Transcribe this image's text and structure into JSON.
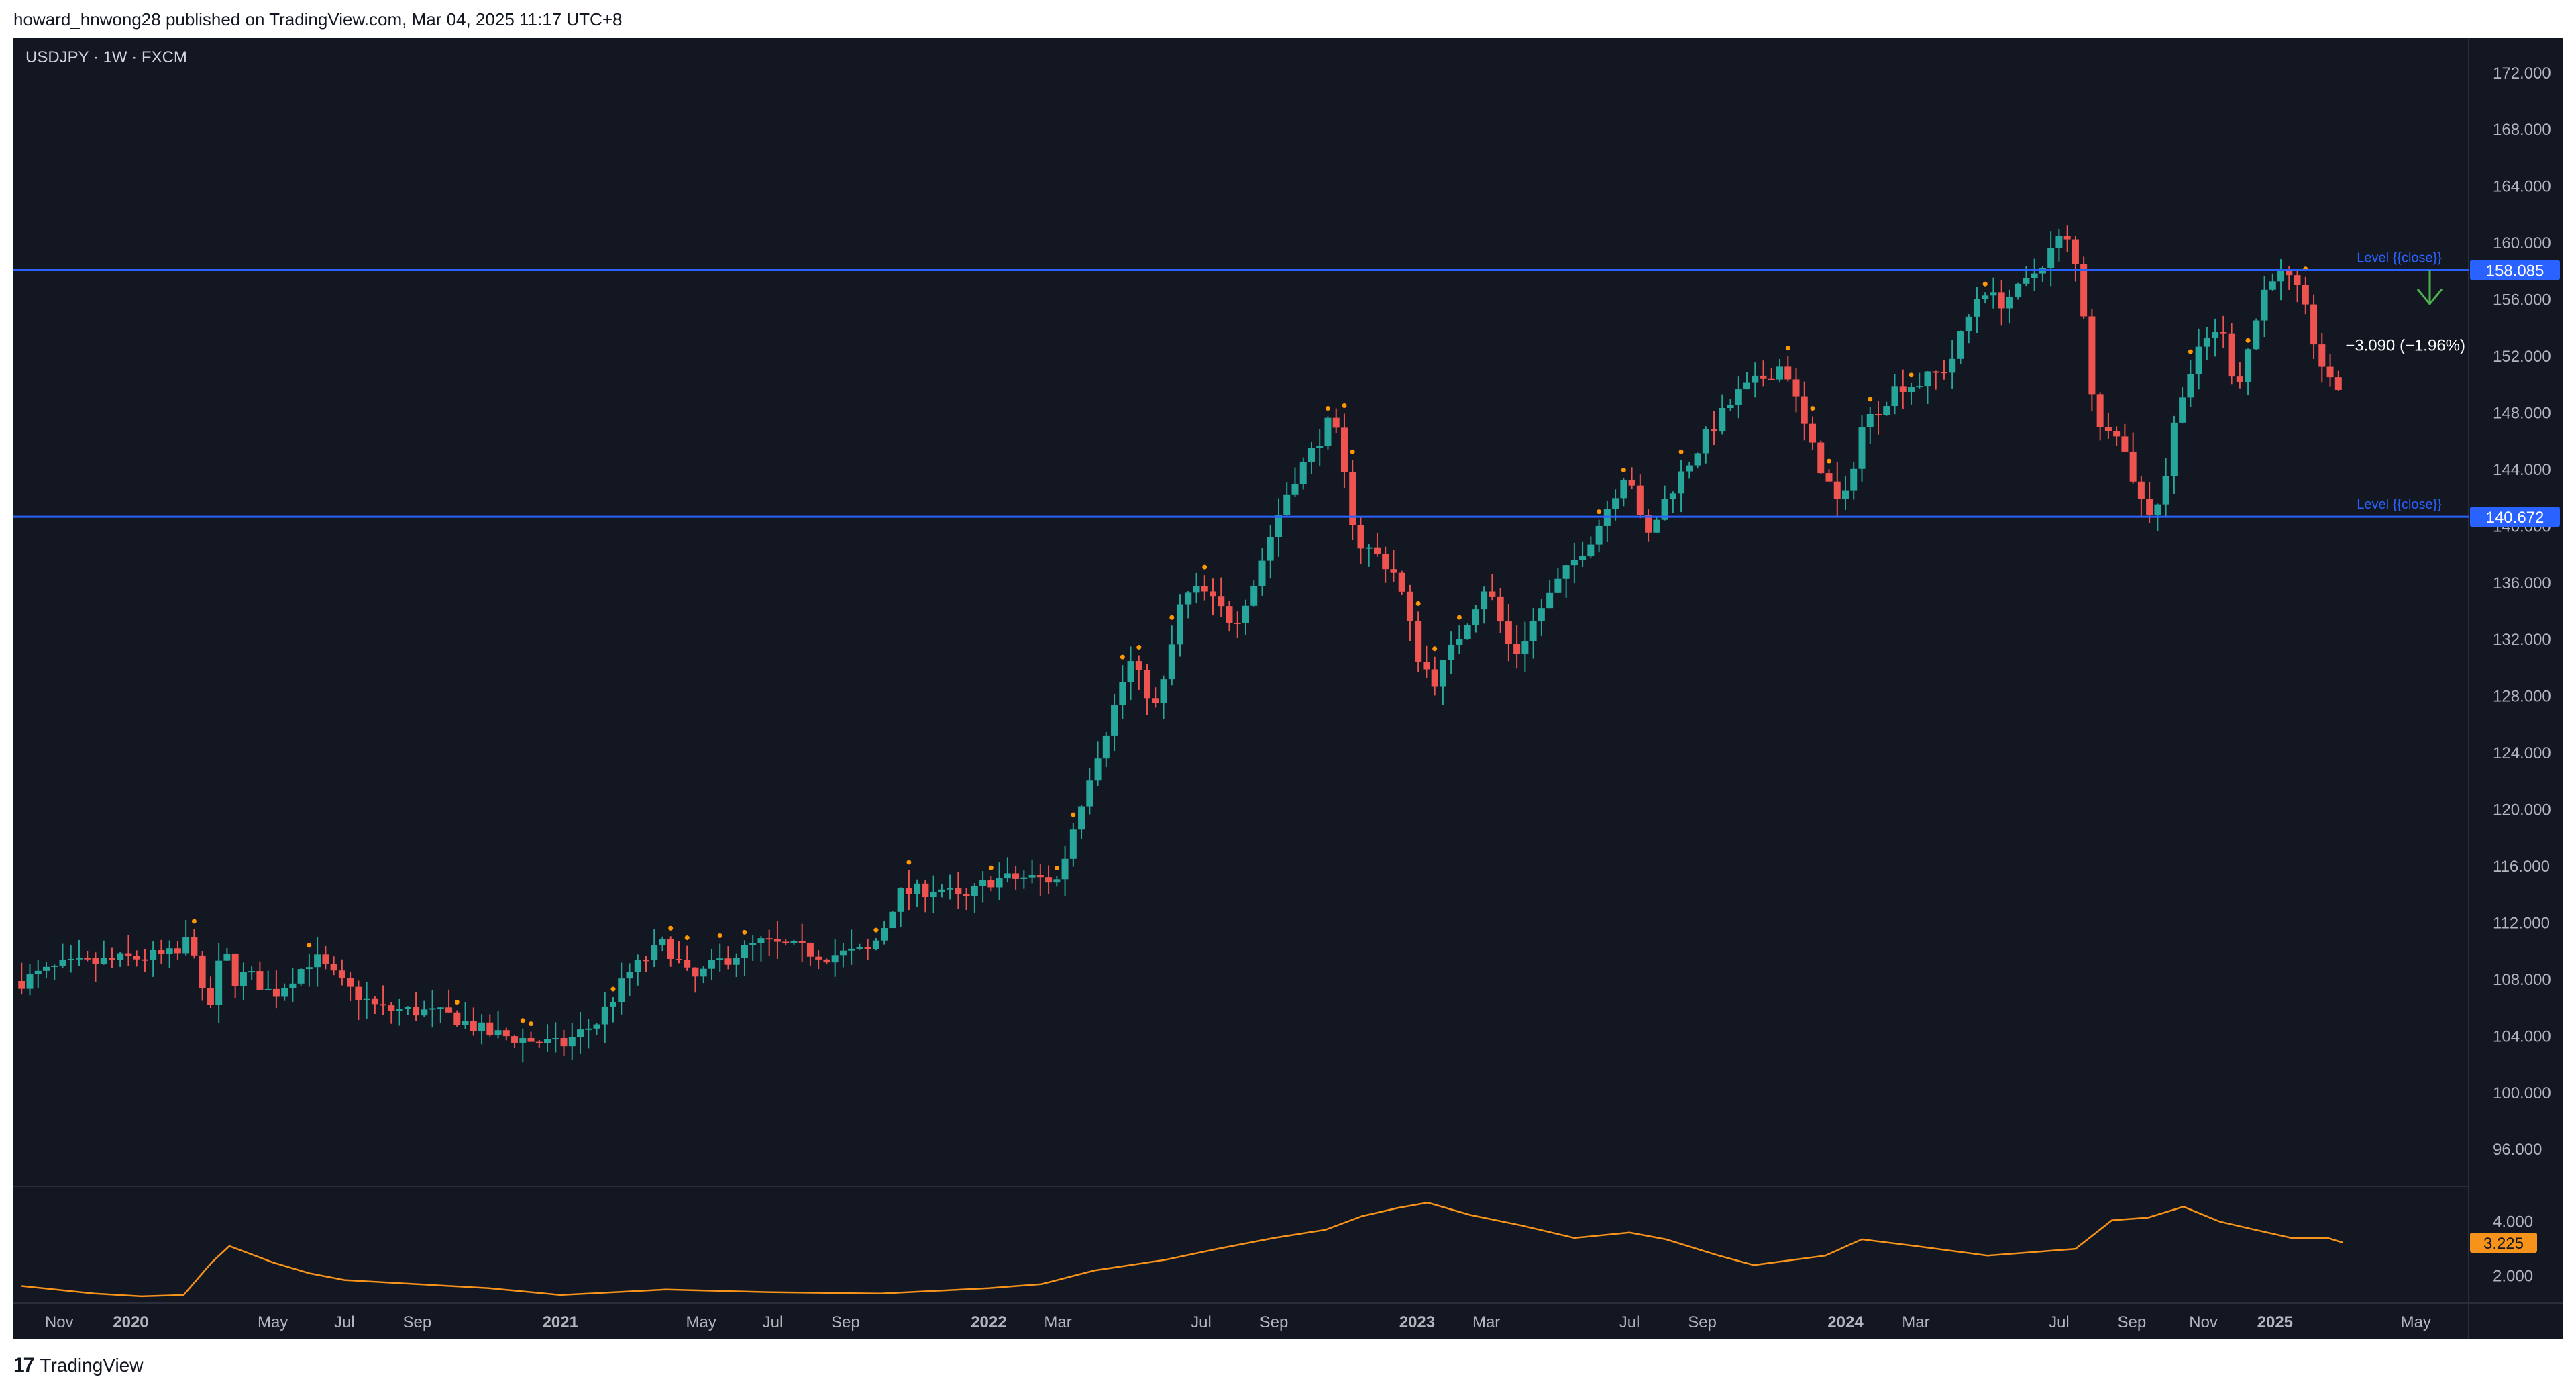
{
  "header": {
    "published_text": "howard_hnwong28 published on TradingView.com, Mar 04, 2025 11:17 UTC+8"
  },
  "symbol": {
    "label": "USDJPY · 1W · FXCM"
  },
  "footer": {
    "brand": "TradingView",
    "logo_icon": "tradingview-logo-icon"
  },
  "colors": {
    "background": "#131722",
    "up": "#26a69a",
    "down": "#ef5350",
    "level": "#2962ff",
    "indicator": "#f7931a",
    "dot": "#ff9800",
    "text": "#b2b5be"
  },
  "chart_data": {
    "type": "candlestick",
    "symbol": "USDJPY",
    "interval": "1W",
    "source": "FXCM",
    "ylim": [
      93.5,
      174.5
    ],
    "y_ticks": [
      "172.000",
      "168.000",
      "164.000",
      "160.000",
      "156.000",
      "152.000",
      "148.000",
      "144.000",
      "140.000",
      "136.000",
      "132.000",
      "128.000",
      "124.000",
      "120.000",
      "116.000",
      "112.000",
      "108.000",
      "104.000",
      "100.000",
      "96.000"
    ],
    "x_ticks": [
      {
        "label": "Nov",
        "t": "2019-11-01",
        "bold": false
      },
      {
        "label": "2020",
        "t": "2020-01-01",
        "bold": true
      },
      {
        "label": "May",
        "t": "2020-05-01",
        "bold": false
      },
      {
        "label": "Jul",
        "t": "2020-07-01",
        "bold": false
      },
      {
        "label": "Sep",
        "t": "2020-09-01",
        "bold": false
      },
      {
        "label": "2021",
        "t": "2021-01-01",
        "bold": true
      },
      {
        "label": "May",
        "t": "2021-05-01",
        "bold": false
      },
      {
        "label": "Jul",
        "t": "2021-07-01",
        "bold": false
      },
      {
        "label": "Sep",
        "t": "2021-09-01",
        "bold": false
      },
      {
        "label": "2022",
        "t": "2022-01-01",
        "bold": true
      },
      {
        "label": "Mar",
        "t": "2022-03-01",
        "bold": false
      },
      {
        "label": "Jul",
        "t": "2022-07-01",
        "bold": false
      },
      {
        "label": "Sep",
        "t": "2022-09-01",
        "bold": false
      },
      {
        "label": "2023",
        "t": "2023-01-01",
        "bold": true
      },
      {
        "label": "Mar",
        "t": "2023-03-01",
        "bold": false
      },
      {
        "label": "Jul",
        "t": "2023-07-01",
        "bold": false
      },
      {
        "label": "Sep",
        "t": "2023-09-01",
        "bold": false
      },
      {
        "label": "2024",
        "t": "2024-01-01",
        "bold": true
      },
      {
        "label": "Mar",
        "t": "2024-03-01",
        "bold": false
      },
      {
        "label": "Jul",
        "t": "2024-07-01",
        "bold": false
      },
      {
        "label": "Sep",
        "t": "2024-09-01",
        "bold": false
      },
      {
        "label": "Nov",
        "t": "2024-11-01",
        "bold": false
      },
      {
        "label": "2025",
        "t": "2025-01-01",
        "bold": true
      },
      {
        "label": "May",
        "t": "2025-05-01",
        "bold": false
      }
    ],
    "close_path": [
      [
        "2019-09-30",
        107.9
      ],
      [
        "2019-11-01",
        108.9
      ],
      [
        "2019-12-01",
        109.2
      ],
      [
        "2020-01-01",
        109.5
      ],
      [
        "2020-02-14",
        109.8
      ],
      [
        "2020-02-21",
        111.8
      ],
      [
        "2020-02-28",
        108.0
      ],
      [
        "2020-03-06",
        105.3
      ],
      [
        "2020-03-13",
        107.5
      ],
      [
        "2020-03-20",
        110.8
      ],
      [
        "2020-03-27",
        107.9
      ],
      [
        "2020-04-10",
        108.4
      ],
      [
        "2020-05-01",
        106.9
      ],
      [
        "2020-06-05",
        109.6
      ],
      [
        "2020-07-01",
        107.5
      ],
      [
        "2020-07-31",
        105.9
      ],
      [
        "2020-09-01",
        105.8
      ],
      [
        "2020-10-01",
        105.4
      ],
      [
        "2020-11-01",
        104.2
      ],
      [
        "2020-12-01",
        103.8
      ],
      [
        "2021-01-01",
        103.3
      ],
      [
        "2021-02-01",
        105.0
      ],
      [
        "2021-03-01",
        108.5
      ],
      [
        "2021-03-31",
        110.6
      ],
      [
        "2021-04-23",
        107.9
      ],
      [
        "2021-05-15",
        109.2
      ],
      [
        "2021-06-20",
        110.6
      ],
      [
        "2021-07-15",
        110.3
      ],
      [
        "2021-08-15",
        109.7
      ],
      [
        "2021-09-20",
        110.0
      ],
      [
        "2021-10-01",
        111.2
      ],
      [
        "2021-10-15",
        114.0
      ],
      [
        "2021-11-20",
        114.5
      ],
      [
        "2021-12-10",
        113.5
      ],
      [
        "2022-01-01",
        115.0
      ],
      [
        "2022-02-01",
        115.2
      ],
      [
        "2022-03-01",
        115.0
      ],
      [
        "2022-03-15",
        119.0
      ],
      [
        "2022-03-28",
        122.5
      ],
      [
        "2022-04-15",
        126.5
      ],
      [
        "2022-05-01",
        130.5
      ],
      [
        "2022-05-25",
        127.0
      ],
      [
        "2022-06-15",
        135.0
      ],
      [
        "2022-07-01",
        135.5
      ],
      [
        "2022-07-29",
        133.2
      ],
      [
        "2022-08-15",
        136.0
      ],
      [
        "2022-09-01",
        140.0
      ],
      [
        "2022-09-15",
        143.0
      ],
      [
        "2022-10-01",
        145.0
      ],
      [
        "2022-10-21",
        147.7
      ],
      [
        "2022-11-11",
        138.8
      ],
      [
        "2022-11-25",
        138.2
      ],
      [
        "2022-12-15",
        136.5
      ],
      [
        "2023-01-01",
        131.0
      ],
      [
        "2023-01-15",
        129.0
      ],
      [
        "2023-02-01",
        131.5
      ],
      [
        "2023-03-01",
        136.0
      ],
      [
        "2023-03-24",
        130.7
      ],
      [
        "2023-04-15",
        134.0
      ],
      [
        "2023-05-01",
        136.0
      ],
      [
        "2023-06-01",
        139.5
      ],
      [
        "2023-06-30",
        144.3
      ],
      [
        "2023-07-14",
        138.8
      ],
      [
        "2023-08-01",
        142.0
      ],
      [
        "2023-09-01",
        146.0
      ],
      [
        "2023-10-01",
        149.3
      ],
      [
        "2023-11-10",
        151.5
      ],
      [
        "2023-12-01",
        146.0
      ],
      [
        "2023-12-29",
        141.0
      ],
      [
        "2024-01-15",
        147.0
      ],
      [
        "2024-02-15",
        150.0
      ],
      [
        "2024-03-01",
        150.0
      ],
      [
        "2024-03-29",
        151.3
      ],
      [
        "2024-04-26",
        157.0
      ],
      [
        "2024-05-10",
        155.7
      ],
      [
        "2024-06-01",
        156.9
      ],
      [
        "2024-07-05",
        160.7
      ],
      [
        "2024-07-19",
        157.5
      ],
      [
        "2024-08-02",
        146.5
      ],
      [
        "2024-08-16",
        147.6
      ],
      [
        "2024-09-13",
        140.8
      ],
      [
        "2024-09-27",
        142.2
      ],
      [
        "2024-10-11",
        149.1
      ],
      [
        "2024-11-01",
        152.9
      ],
      [
        "2024-11-15",
        154.3
      ],
      [
        "2024-11-29",
        149.7
      ],
      [
        "2024-12-13",
        153.7
      ],
      [
        "2024-12-27",
        157.8
      ],
      [
        "2025-01-10",
        157.7
      ],
      [
        "2025-01-24",
        156.0
      ],
      [
        "2025-02-07",
        152.0
      ],
      [
        "2025-02-21",
        149.2
      ],
      [
        "2025-02-28",
        150.6
      ]
    ],
    "levels": [
      {
        "label": "Level {{close}}",
        "value": 158.085,
        "price_label": "158.085"
      },
      {
        "label": "Level {{close}}",
        "value": 140.672,
        "price_label": "140.672"
      }
    ],
    "annotation": {
      "text": "−3.090 (−1.96%)",
      "direction": "down"
    },
    "indicator": {
      "ylim": [
        1.0,
        5.3
      ],
      "ticks": [
        "4.000",
        "2.000"
      ],
      "last_value": "3.225",
      "path": [
        [
          "2019-09-30",
          1.63
        ],
        [
          "2019-12-01",
          1.35
        ],
        [
          "2020-01-10",
          1.25
        ],
        [
          "2020-02-15",
          1.3
        ],
        [
          "2020-03-10",
          2.5
        ],
        [
          "2020-03-25",
          3.1
        ],
        [
          "2020-05-01",
          2.5
        ],
        [
          "2020-06-01",
          2.1
        ],
        [
          "2020-07-01",
          1.85
        ],
        [
          "2020-09-01",
          1.7
        ],
        [
          "2020-11-01",
          1.55
        ],
        [
          "2021-01-01",
          1.3
        ],
        [
          "2021-04-01",
          1.5
        ],
        [
          "2021-07-01",
          1.4
        ],
        [
          "2021-10-01",
          1.35
        ],
        [
          "2022-01-01",
          1.55
        ],
        [
          "2022-02-15",
          1.7
        ],
        [
          "2022-04-01",
          2.2
        ],
        [
          "2022-06-01",
          2.6
        ],
        [
          "2022-07-15",
          3.0
        ],
        [
          "2022-09-01",
          3.4
        ],
        [
          "2022-10-15",
          3.7
        ],
        [
          "2022-11-15",
          4.2
        ],
        [
          "2022-12-15",
          4.5
        ],
        [
          "2023-01-10",
          4.7
        ],
        [
          "2023-02-15",
          4.25
        ],
        [
          "2023-04-01",
          3.85
        ],
        [
          "2023-05-15",
          3.4
        ],
        [
          "2023-07-01",
          3.6
        ],
        [
          "2023-08-01",
          3.35
        ],
        [
          "2023-09-15",
          2.75
        ],
        [
          "2023-10-15",
          2.4
        ],
        [
          "2023-12-15",
          2.75
        ],
        [
          "2024-01-15",
          3.35
        ],
        [
          "2024-03-01",
          3.1
        ],
        [
          "2024-05-01",
          2.75
        ],
        [
          "2024-06-01",
          2.85
        ],
        [
          "2024-07-15",
          3.0
        ],
        [
          "2024-08-15",
          4.05
        ],
        [
          "2024-09-15",
          4.15
        ],
        [
          "2024-10-15",
          4.55
        ],
        [
          "2024-11-15",
          4.0
        ],
        [
          "2024-12-15",
          3.7
        ],
        [
          "2025-01-15",
          3.4
        ],
        [
          "2025-02-15",
          3.4
        ],
        [
          "2025-02-28",
          3.225
        ]
      ]
    }
  }
}
